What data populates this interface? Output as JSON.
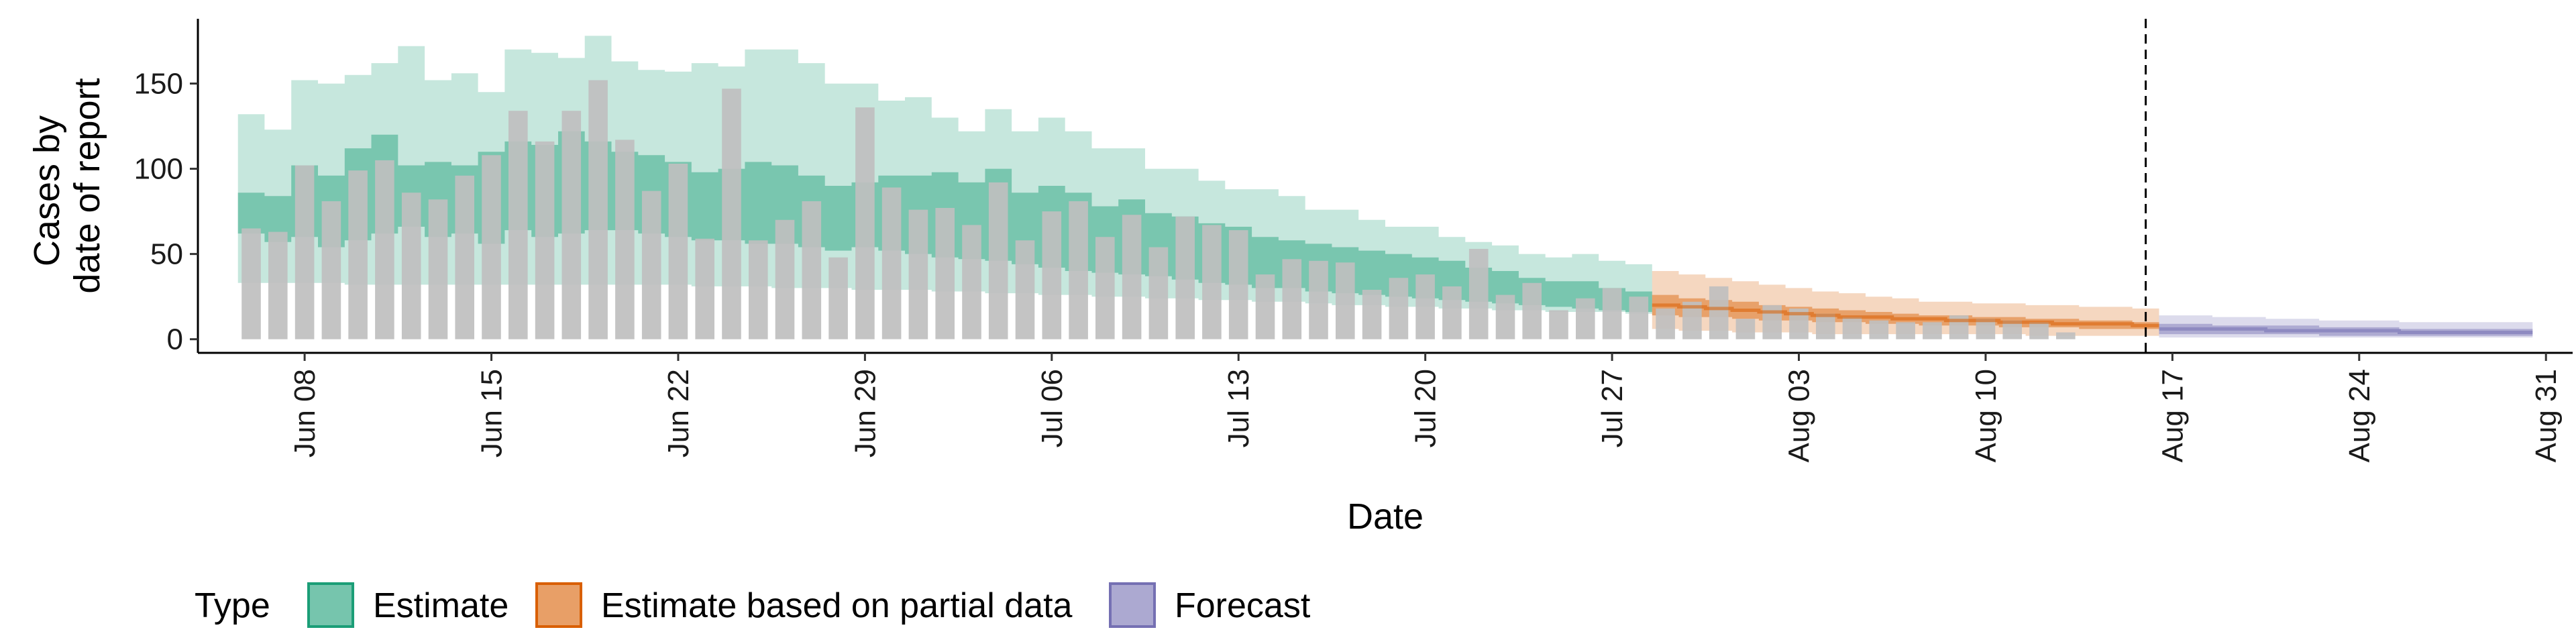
{
  "chart_data": {
    "type": "bar",
    "xlabel": "Date",
    "ylabel_lines": [
      "Cases by",
      "date of report"
    ],
    "ylim": [
      -8,
      188
    ],
    "xlim": [
      "2020-06-04",
      "2020-09-01"
    ],
    "y_ticks": [
      0,
      50,
      100,
      150
    ],
    "x_ticks": [
      {
        "date": "2020-06-08",
        "label": "Jun 08"
      },
      {
        "date": "2020-06-15",
        "label": "Jun 15"
      },
      {
        "date": "2020-06-22",
        "label": "Jun 22"
      },
      {
        "date": "2020-06-29",
        "label": "Jun 29"
      },
      {
        "date": "2020-07-06",
        "label": "Jul 06"
      },
      {
        "date": "2020-07-13",
        "label": "Jul 13"
      },
      {
        "date": "2020-07-20",
        "label": "Jul 20"
      },
      {
        "date": "2020-07-27",
        "label": "Jul 27"
      },
      {
        "date": "2020-08-03",
        "label": "Aug 03"
      },
      {
        "date": "2020-08-10",
        "label": "Aug 10"
      },
      {
        "date": "2020-08-17",
        "label": "Aug 17"
      },
      {
        "date": "2020-08-24",
        "label": "Aug 24"
      },
      {
        "date": "2020-08-31",
        "label": "Aug 31"
      }
    ],
    "grid": false,
    "legend_position": "bottom",
    "legend_title": "Type",
    "vline_date": "2020-08-16",
    "bars": {
      "start_date": "2020-06-06",
      "color": "#bfbfbf",
      "values": [
        65,
        63,
        102,
        81,
        99,
        105,
        86,
        82,
        96,
        108,
        134,
        116,
        134,
        152,
        117,
        87,
        103,
        59,
        147,
        58,
        70,
        81,
        48,
        136,
        89,
        76,
        77,
        67,
        92,
        58,
        75,
        81,
        60,
        73,
        54,
        72,
        67,
        64,
        38,
        47,
        46,
        45,
        29,
        36,
        38,
        31,
        53,
        26,
        33,
        17,
        24,
        30,
        25,
        18,
        22,
        31,
        12,
        20,
        18,
        15,
        13,
        11,
        10,
        10,
        14,
        12,
        11,
        10,
        4
      ]
    },
    "series": [
      {
        "name": "Estimate",
        "color": "#1b9e77",
        "start_date": "2020-06-06",
        "outer_low": [
          33,
          33,
          33,
          33,
          32,
          32,
          32,
          32,
          32,
          32,
          32,
          32,
          32,
          32,
          32,
          32,
          32,
          31,
          31,
          31,
          30,
          30,
          30,
          29,
          29,
          29,
          28,
          28,
          27,
          27,
          26,
          26,
          25,
          25,
          24,
          24,
          23,
          23,
          22,
          22,
          21,
          20,
          20,
          19,
          19,
          18,
          18,
          17,
          17,
          16,
          16,
          16,
          15
        ],
        "outer_high": [
          132,
          123,
          152,
          150,
          155,
          162,
          172,
          152,
          156,
          145,
          170,
          168,
          165,
          178,
          163,
          158,
          157,
          162,
          160,
          170,
          170,
          162,
          150,
          150,
          140,
          142,
          130,
          122,
          135,
          122,
          130,
          122,
          112,
          112,
          100,
          100,
          93,
          88,
          88,
          84,
          76,
          76,
          70,
          66,
          66,
          60,
          57,
          55,
          50,
          48,
          50,
          46,
          44
        ],
        "inner_low": [
          62,
          57,
          60,
          54,
          58,
          62,
          66,
          60,
          62,
          56,
          64,
          60,
          62,
          64,
          64,
          62,
          60,
          58,
          58,
          56,
          56,
          54,
          52,
          54,
          52,
          50,
          48,
          47,
          46,
          44,
          42,
          40,
          39,
          38,
          37,
          35,
          33,
          32,
          30,
          30,
          28,
          27,
          26,
          25,
          24,
          23,
          22,
          21,
          20,
          19,
          18,
          17,
          16
        ],
        "inner_high": [
          86,
          84,
          102,
          96,
          112,
          120,
          102,
          104,
          102,
          110,
          116,
          114,
          122,
          116,
          110,
          108,
          104,
          98,
          100,
          104,
          102,
          96,
          90,
          92,
          96,
          96,
          98,
          92,
          100,
          86,
          90,
          86,
          78,
          82,
          74,
          72,
          68,
          66,
          60,
          58,
          56,
          54,
          52,
          50,
          48,
          46,
          42,
          40,
          36,
          34,
          34,
          30,
          28
        ]
      },
      {
        "name": "Estimate based on partial data",
        "color": "#d95f02",
        "start_date": "2020-07-29",
        "outer_low": [
          6,
          5,
          5,
          4,
          4,
          4,
          3,
          3,
          3,
          3,
          3,
          3,
          3,
          3,
          2,
          2,
          2,
          2,
          2
        ],
        "outer_high": [
          40,
          38,
          36,
          34,
          32,
          30,
          28,
          27,
          25,
          24,
          22,
          22,
          21,
          21,
          20,
          20,
          19,
          19,
          18
        ],
        "inner_low": [
          14,
          13,
          13,
          12,
          11,
          11,
          10,
          10,
          9,
          9,
          8,
          8,
          8,
          7,
          7,
          7,
          6,
          6,
          6
        ],
        "inner_high": [
          26,
          24,
          23,
          22,
          20,
          19,
          18,
          17,
          16,
          15,
          14,
          14,
          13,
          13,
          12,
          12,
          11,
          11,
          10
        ],
        "median": [
          20,
          19,
          18,
          17,
          16,
          15,
          14,
          13,
          13,
          12,
          12,
          11,
          11,
          10,
          10,
          9,
          9,
          9,
          8
        ]
      },
      {
        "name": "Forecast",
        "color": "#7570b3",
        "start_date": "2020-08-17",
        "outer_low": [
          1,
          1,
          1,
          1,
          1,
          1,
          1,
          1,
          1,
          1,
          1,
          1,
          1,
          1
        ],
        "outer_high": [
          14,
          14,
          13,
          13,
          12,
          12,
          11,
          11,
          11,
          10,
          10,
          10,
          10,
          10
        ],
        "inner_low": [
          3,
          3,
          3,
          3,
          3,
          3,
          2,
          2,
          2,
          2,
          2,
          2,
          2,
          2
        ],
        "inner_high": [
          9,
          9,
          8,
          8,
          8,
          8,
          7,
          7,
          7,
          6,
          6,
          6,
          6,
          6
        ],
        "median": [
          6,
          6,
          6,
          6,
          5,
          5,
          5,
          5,
          5,
          4,
          4,
          4,
          4,
          4
        ]
      }
    ]
  }
}
